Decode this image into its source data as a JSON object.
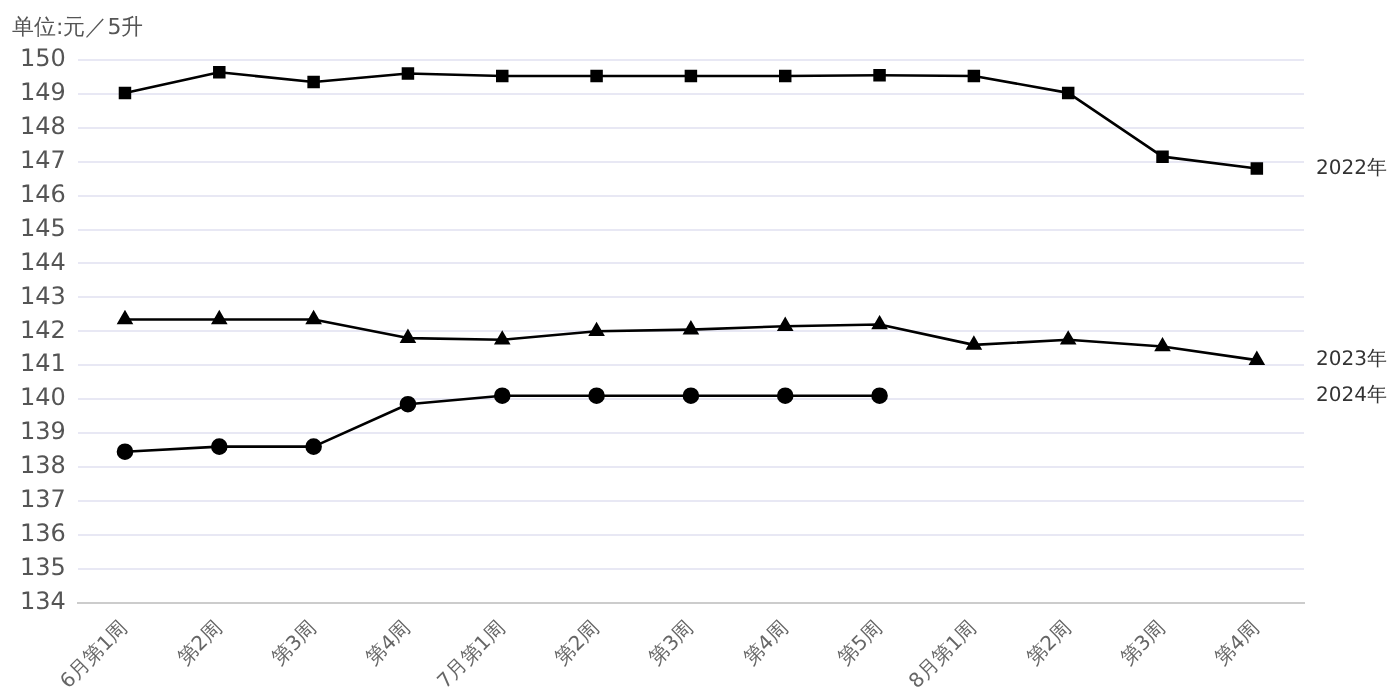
{
  "chart_data": {
    "type": "line",
    "ylabel": "单位:元／5升",
    "categories": [
      "6月第1周",
      "第2周",
      "第3周",
      "第4周",
      "7月第1周",
      "第2周",
      "第3周",
      "第4周",
      "第5周",
      "8月第1周",
      "第2周",
      "第3周",
      "第4周"
    ],
    "series": [
      {
        "name": "2022年",
        "color": "#000000",
        "marker": "square",
        "values": [
          149.03,
          149.64,
          149.35,
          149.6,
          149.53,
          149.53,
          149.53,
          149.53,
          149.55,
          149.53,
          149.03,
          147.15,
          146.8
        ]
      },
      {
        "name": "2023年",
        "color": "#000000",
        "marker": "triangle",
        "values": [
          142.35,
          142.35,
          142.35,
          141.8,
          141.75,
          142.0,
          142.05,
          142.15,
          142.2,
          141.6,
          141.75,
          141.55,
          141.15
        ]
      },
      {
        "name": "2024年",
        "color": "#000000",
        "marker": "circle",
        "values": [
          138.45,
          138.6,
          138.6,
          139.85,
          140.1,
          140.1,
          140.1,
          140.1,
          140.1,
          null,
          null,
          null,
          null
        ]
      }
    ],
    "ylim": [
      134,
      150
    ],
    "yticks": [
      134,
      135,
      136,
      137,
      138,
      139,
      140,
      141,
      142,
      143,
      144,
      145,
      146,
      147,
      148,
      149,
      150
    ],
    "grid": "y",
    "legend": false,
    "line_style": "solid"
  }
}
